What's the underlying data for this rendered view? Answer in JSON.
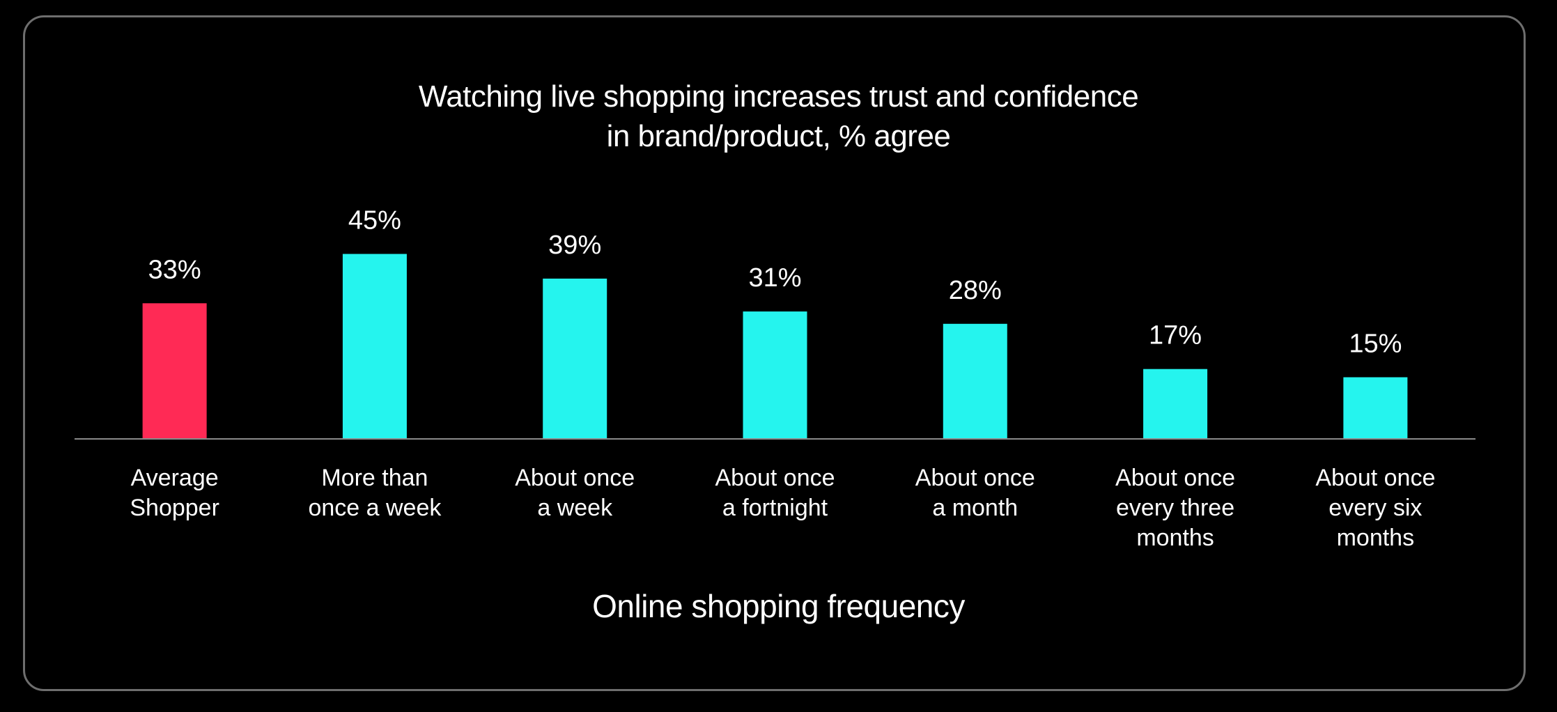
{
  "chart_data": {
    "type": "bar",
    "title_lines": [
      "Watching live shopping increases trust and confidence",
      "in brand/product, % agree"
    ],
    "xlabel": "Online shopping frequency",
    "ylabel": "",
    "categories": [
      [
        "Average",
        "Shopper"
      ],
      [
        "More than",
        "once a week"
      ],
      [
        "About once",
        "a week"
      ],
      [
        "About once",
        "a fortnight"
      ],
      [
        "About once",
        "a month"
      ],
      [
        "About once",
        "every three",
        "months"
      ],
      [
        "About once",
        "every six",
        "months"
      ]
    ],
    "values": [
      33,
      45,
      39,
      31,
      28,
      17,
      15
    ],
    "data_labels": [
      "33%",
      "45%",
      "39%",
      "31%",
      "28%",
      "17%",
      "15%"
    ],
    "bar_colors": [
      "#ff2a55",
      "#25f4ee",
      "#25f4ee",
      "#25f4ee",
      "#25f4ee",
      "#25f4ee",
      "#25f4ee"
    ],
    "ylim": [
      0,
      45
    ],
    "grid": false,
    "legend": "none"
  },
  "colors": {
    "background": "#000000",
    "highlight": "#ff2a55",
    "accent": "#25f4ee",
    "text": "#ffffff",
    "baseline": "#8a8a8a"
  }
}
